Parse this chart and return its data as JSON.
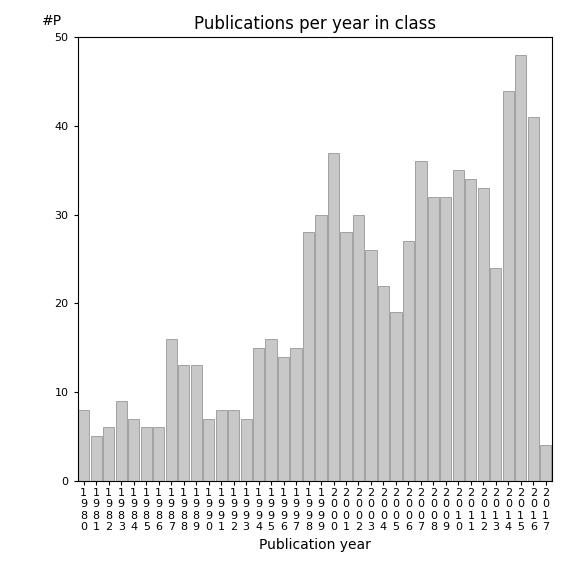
{
  "title": "Publications per year in class",
  "xlabel": "Publication year",
  "ylabel": "#P",
  "bar_color": "#c8c8c8",
  "bar_edgecolor": "#888888",
  "years": [
    1980,
    1981,
    1982,
    1983,
    1984,
    1985,
    1986,
    1987,
    1988,
    1989,
    1990,
    1991,
    1992,
    1993,
    1994,
    1995,
    1996,
    1997,
    1998,
    1999,
    2000,
    2001,
    2002,
    2003,
    2004,
    2005,
    2006,
    2007,
    2008,
    2009,
    2010,
    2011,
    2012,
    2013,
    2014,
    2015,
    2016,
    2017
  ],
  "values": [
    8,
    5,
    6,
    9,
    7,
    6,
    6,
    16,
    13,
    13,
    7,
    8,
    8,
    7,
    15,
    16,
    14,
    15,
    28,
    30,
    37,
    28,
    30,
    26,
    22,
    19,
    27,
    36,
    32,
    32,
    35,
    34,
    33,
    24,
    44,
    48,
    41,
    4
  ],
  "ylim": [
    0,
    50
  ],
  "yticks": [
    0,
    10,
    20,
    30,
    40,
    50
  ],
  "background_color": "#ffffff",
  "title_fontsize": 12,
  "xlabel_fontsize": 10,
  "ylabel_fontsize": 10,
  "tick_fontsize": 8
}
